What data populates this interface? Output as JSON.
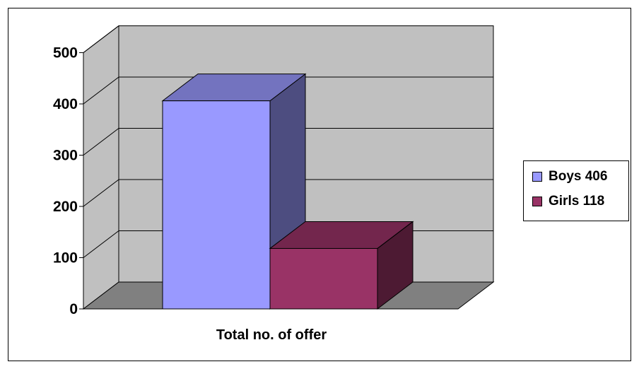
{
  "chart_data": {
    "type": "bar",
    "style": "3d",
    "categories": [
      "Total no. of offer"
    ],
    "series": [
      {
        "name": "Boys 406",
        "values": [
          406
        ],
        "color": "#9999ff"
      },
      {
        "name": "Girls 118",
        "values": [
          118
        ],
        "color": "#993366"
      }
    ],
    "xlabel": "Total no. of offer",
    "ylabel": "",
    "ylim": [
      0,
      500
    ],
    "yticks": [
      0,
      100,
      200,
      300,
      400,
      500
    ],
    "grid": true,
    "legend": "right"
  },
  "colors": {
    "wall": "#c0c0c0",
    "floor": "#808080"
  }
}
